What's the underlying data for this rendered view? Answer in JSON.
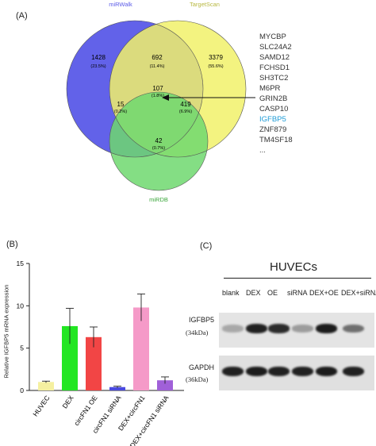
{
  "panel_a": {
    "label": "(A)",
    "sets": [
      {
        "name": "miRWalk",
        "color": "#5a5ae8"
      },
      {
        "name": "TargetScan",
        "color": "#f1f16a"
      },
      {
        "name": "miRDB",
        "color": "#6fd86f"
      }
    ],
    "regions": [
      {
        "id": "mirwalk_only",
        "count": "1428",
        "pct": "(23.5%)"
      },
      {
        "id": "mirwalk_targetscan",
        "count": "692",
        "pct": "(11.4%)"
      },
      {
        "id": "targetscan_only",
        "count": "3379",
        "pct": "(55.6%)"
      },
      {
        "id": "all_three",
        "count": "107",
        "pct": "(1.8%)"
      },
      {
        "id": "mirwalk_mirdb",
        "count": "15",
        "pct": "(0.2%)"
      },
      {
        "id": "targetscan_mirdb",
        "count": "419",
        "pct": "(6.9%)"
      },
      {
        "id": "mirdb_only",
        "count": "42",
        "pct": "(0.7%)"
      }
    ],
    "genes": [
      "MYCBP",
      "SLC24A2",
      "SAMD12",
      "FCHSD1",
      "SH3TC2",
      "M6PR",
      "GRIN2B",
      "CASP10",
      "IGFBP5",
      "ZNF879",
      "TM4SF18",
      "..."
    ],
    "highlight_gene": "IGFBP5"
  },
  "panel_b": {
    "label": "(B)",
    "chart_data": {
      "type": "bar",
      "categories": [
        "HUVEC",
        "DEX",
        "circFN1 OE",
        "circFN1 siRNA",
        "DEX+circFN1",
        "DEX+circFN1 siRNA"
      ],
      "values": [
        1.0,
        7.6,
        6.3,
        0.4,
        9.8,
        1.2
      ],
      "errors": [
        0.1,
        2.1,
        1.2,
        0.1,
        1.6,
        0.4
      ],
      "colors": [
        "#f5f0a0",
        "#22e622",
        "#f24545",
        "#4a4ae0",
        "#f59ac8",
        "#a060d8"
      ],
      "ylabel": "Relative IGFBP5 mRNA expression",
      "yticks": [
        "0",
        "5",
        "10",
        "15"
      ],
      "ylim": [
        0,
        15
      ]
    }
  },
  "panel_c": {
    "label": "(C)",
    "title": "HUVECs",
    "lanes": [
      "blank",
      "DEX",
      "OE",
      "siRNA",
      "DEX+OE",
      "DEX+siRNA"
    ],
    "rows": [
      {
        "protein": "IGFBP5",
        "size": "(34kDa)",
        "intensities": [
          0.3,
          0.9,
          0.85,
          0.35,
          0.92,
          0.55
        ]
      },
      {
        "protein": "GAPDH",
        "size": "(36kDa)",
        "intensities": [
          0.9,
          0.92,
          0.9,
          0.9,
          0.92,
          0.9
        ]
      }
    ]
  }
}
